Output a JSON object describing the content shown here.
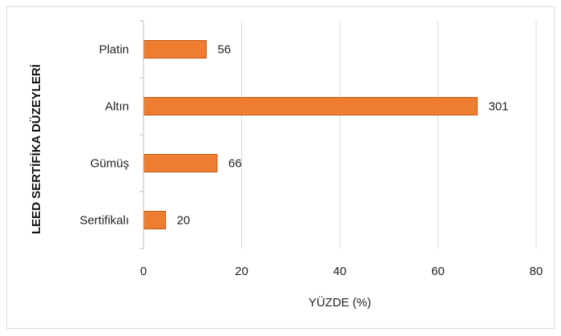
{
  "chart_data": {
    "type": "bar",
    "orientation": "horizontal",
    "categories": [
      "Platin",
      "Altın",
      "Gümüş",
      "Sertifikalı"
    ],
    "values": [
      12.8,
      68.0,
      15.0,
      4.5
    ],
    "data_labels": [
      "56",
      "301",
      "66",
      "20"
    ],
    "xlabel": "YÜZDE (%)",
    "ylabel": "LEED SERTİFİKA DÜZEYLERİ",
    "xlim": [
      0,
      80
    ],
    "xticks": [
      "0",
      "20",
      "40",
      "60",
      "80"
    ],
    "grid": "vertical",
    "legend": "none",
    "bar_color": "#ed7d31",
    "bar_border_color": "#c55a11"
  }
}
